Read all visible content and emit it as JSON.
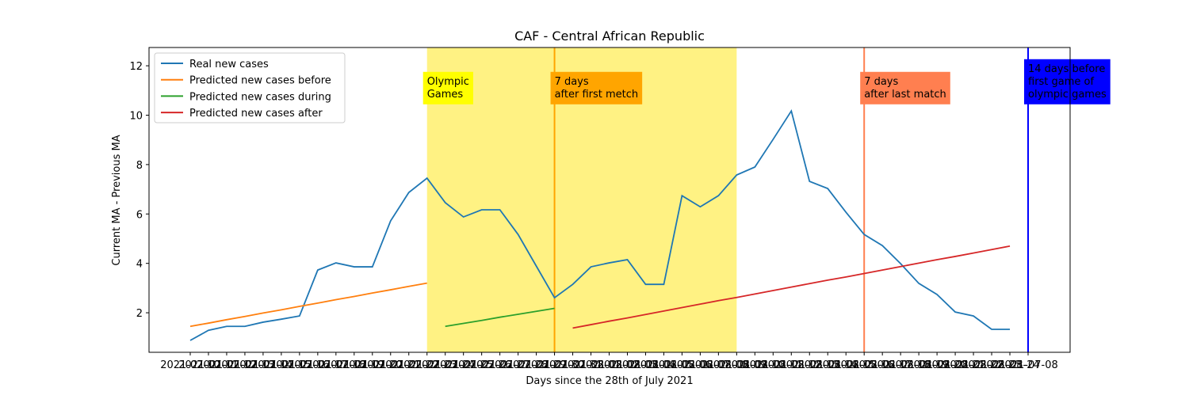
{
  "chart_data": {
    "type": "line",
    "title": "CAF - Central African Republic",
    "x_label": "Days since the 28th of July 2021",
    "y_label": "Current MA - Previous MA",
    "categories": [
      "2021-07-10",
      "2021-07-11",
      "2021-07-12",
      "2021-07-13",
      "2021-07-14",
      "2021-07-15",
      "2021-07-16",
      "2021-07-17",
      "2021-07-18",
      "2021-07-19",
      "2021-07-20",
      "2021-07-21",
      "2021-07-22",
      "2021-07-23",
      "2021-07-24",
      "2021-07-25",
      "2021-07-26",
      "2021-07-27",
      "2021-07-28",
      "2021-07-29",
      "2021-07-30",
      "2021-07-31",
      "2021-08-01",
      "2021-08-02",
      "2021-08-03",
      "2021-08-04",
      "2021-08-05",
      "2021-08-06",
      "2021-08-07",
      "2021-08-08",
      "2021-08-09",
      "2021-08-10",
      "2021-08-11",
      "2021-08-12",
      "2021-08-13",
      "2021-08-14",
      "2021-08-15",
      "2021-08-16",
      "2021-08-17",
      "2021-08-18",
      "2021-08-19",
      "2021-08-20",
      "2021-08-21",
      "2021-08-22",
      "2021-08-23",
      "2021-08-24",
      "2021-07-08"
    ],
    "series": [
      {
        "name": "Real new cases",
        "color": "#1f77b4",
        "values": [
          0.88,
          1.29,
          1.45,
          1.45,
          1.62,
          1.74,
          1.87,
          3.73,
          4.02,
          3.86,
          3.86,
          5.72,
          6.87,
          7.45,
          6.46,
          5.88,
          6.17,
          6.17,
          5.17,
          3.89,
          2.61,
          3.15,
          3.86,
          4.02,
          4.15,
          3.15,
          3.15,
          6.74,
          6.29,
          6.74,
          7.58,
          7.9,
          9.02,
          10.17,
          7.32,
          7.03,
          6.07,
          5.17,
          4.72,
          3.99,
          3.19,
          2.74,
          2.03,
          1.87,
          1.33,
          1.33,
          null
        ]
      },
      {
        "name": "Predicted new cases before",
        "color": "#ff7f0e",
        "values": [
          1.45,
          1.58,
          1.72,
          1.85,
          1.99,
          2.12,
          2.26,
          2.39,
          2.53,
          2.66,
          2.8,
          2.93,
          3.07,
          3.2,
          null,
          null,
          null,
          null,
          null,
          null,
          null,
          null,
          null,
          null,
          null,
          null,
          null,
          null,
          null,
          null,
          null,
          null,
          null,
          null,
          null,
          null,
          null,
          null,
          null,
          null,
          null,
          null,
          null,
          null,
          null,
          null,
          null
        ]
      },
      {
        "name": "Predicted new cases during",
        "color": "#2ca02c",
        "values": [
          null,
          null,
          null,
          null,
          null,
          null,
          null,
          null,
          null,
          null,
          null,
          null,
          null,
          null,
          1.45,
          1.57,
          1.69,
          1.82,
          1.94,
          2.06,
          2.18,
          null,
          null,
          null,
          null,
          null,
          null,
          null,
          null,
          null,
          null,
          null,
          null,
          null,
          null,
          null,
          null,
          null,
          null,
          null,
          null,
          null,
          null,
          null,
          null,
          null,
          null
        ]
      },
      {
        "name": "Predicted new cases after",
        "color": "#d62728",
        "values": [
          null,
          null,
          null,
          null,
          null,
          null,
          null,
          null,
          null,
          null,
          null,
          null,
          null,
          null,
          null,
          null,
          null,
          null,
          null,
          null,
          null,
          1.38,
          1.52,
          1.66,
          1.79,
          1.93,
          2.07,
          2.21,
          2.35,
          2.49,
          2.62,
          2.76,
          2.9,
          3.04,
          3.18,
          3.32,
          3.45,
          3.59,
          3.73,
          3.87,
          4.01,
          4.15,
          4.28,
          4.42,
          4.56,
          4.7,
          null
        ]
      }
    ],
    "ylim": [
      0.4,
      12.74
    ],
    "yticks": [
      2,
      4,
      6,
      8,
      10,
      12
    ],
    "legend": "upper-left",
    "spans": [
      {
        "from": "2021-07-23",
        "to": "2021-08-09",
        "color": "#fff176"
      }
    ],
    "vlines": [
      {
        "x": "2021-07-30",
        "color": "#ffa500"
      },
      {
        "x": "2021-08-16",
        "color": "#ff7f50"
      },
      {
        "x": "2021-07-08",
        "color": "#0000ff"
      }
    ],
    "annotations": [
      {
        "x": "2021-07-23",
        "y": 10.6,
        "lines": [
          "Olympic",
          "Games"
        ],
        "background": "#ffff00",
        "text_color": "#000000"
      },
      {
        "x": "2021-07-30",
        "y": 10.6,
        "lines": [
          "7 days",
          "after first metch"
        ],
        "background": "#ffa500",
        "text_color": "#000000"
      },
      {
        "x": "2021-08-16",
        "y": 10.6,
        "lines": [
          "7 days",
          "after last match"
        ],
        "background": "#ff7f50",
        "text_color": "#000000"
      },
      {
        "x": "2021-07-08",
        "y": 10.6,
        "lines": [
          "14 days before",
          "first game of",
          "olympic games"
        ],
        "background": "#0000ff",
        "text_color": "#ffffff"
      }
    ]
  }
}
